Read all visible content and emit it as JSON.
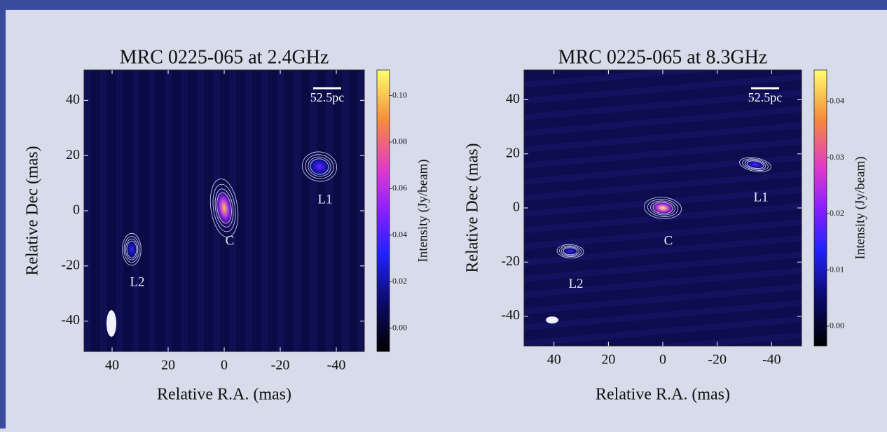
{
  "chart_data": [
    {
      "type": "map",
      "title": "MRC 0225-065 at 2.4GHz",
      "x_label": "Relative R.A. (mas)",
      "y_label": "Relative Dec (mas)",
      "xlim": [
        50,
        -50
      ],
      "ylim": [
        -51,
        51
      ],
      "xticks": [
        40,
        20,
        0,
        -20,
        -40
      ],
      "yticks": [
        40,
        20,
        0,
        -20,
        -40
      ],
      "colorbar": {
        "label": "Intensity (Jy/beam)",
        "lim": [
          -0.01,
          0.111
        ],
        "ticks": [
          {
            "value": 0,
            "label": "0.00"
          },
          {
            "value": 0.02,
            "label": "0.02"
          },
          {
            "value": 0.04,
            "label": "0.04"
          },
          {
            "value": 0.06,
            "label": "0.06"
          },
          {
            "value": 0.08,
            "label": "0.08"
          },
          {
            "value": 0.1,
            "label": "0.10"
          }
        ]
      },
      "scale_bar": "52.5pc",
      "components": [
        {
          "name": "C",
          "x": 0,
          "y": 1,
          "peak": 0.1
        },
        {
          "name": "L1",
          "x": -34,
          "y": 16,
          "peak": 0.045
        },
        {
          "name": "L2",
          "x": 33,
          "y": -14,
          "peak": 0.035
        }
      ]
    },
    {
      "type": "map",
      "title": "MRC 0225-065 at 8.3GHz",
      "x_label": "Relative R.A. (mas)",
      "y_label": "Relative Dec (mas)",
      "xlim": [
        51,
        -51
      ],
      "ylim": [
        -51,
        51
      ],
      "xticks": [
        40,
        20,
        0,
        -20,
        -40
      ],
      "yticks": [
        40,
        20,
        0,
        -20,
        -40
      ],
      "colorbar": {
        "label": "Intensity (Jy/beam)",
        "lim": [
          -0.0035,
          0.0456
        ],
        "ticks": [
          {
            "value": 0,
            "label": "0.00"
          },
          {
            "value": 0.01,
            "label": "0.01"
          },
          {
            "value": 0.02,
            "label": "0.02"
          },
          {
            "value": 0.03,
            "label": "0.03"
          },
          {
            "value": 0.04,
            "label": "0.04"
          }
        ]
      },
      "scale_bar": "52.5pc",
      "components": [
        {
          "name": "C",
          "x": 0,
          "y": 0,
          "peak": 0.045
        },
        {
          "name": "L1",
          "x": -34,
          "y": 16,
          "peak": 0.018
        },
        {
          "name": "L2",
          "x": 34,
          "y": -16,
          "peak": 0.015
        }
      ]
    }
  ]
}
